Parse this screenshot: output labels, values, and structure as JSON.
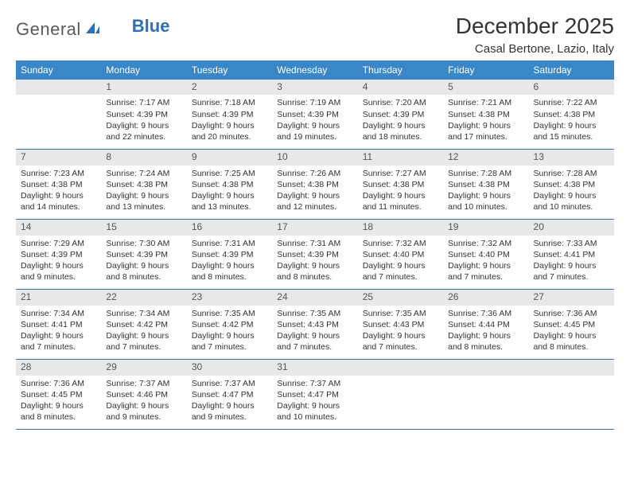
{
  "logo": {
    "part1": "General",
    "part2": "Blue"
  },
  "title": "December 2025",
  "location": "Casal Bertone, Lazio, Italy",
  "colors": {
    "header_bg": "#3a87c8",
    "header_text": "#ffffff",
    "daynum_bg": "#e8e8e8",
    "daynum_text": "#555555",
    "text": "#333333",
    "row_border": "#3a6fa5",
    "logo_gray": "#5a5a5a",
    "logo_blue": "#2f6fb3"
  },
  "day_headers": [
    "Sunday",
    "Monday",
    "Tuesday",
    "Wednesday",
    "Thursday",
    "Friday",
    "Saturday"
  ],
  "weeks": [
    [
      {
        "num": "",
        "empty": true
      },
      {
        "num": "1",
        "sunrise": "Sunrise: 7:17 AM",
        "sunset": "Sunset: 4:39 PM",
        "daylight1": "Daylight: 9 hours",
        "daylight2": "and 22 minutes."
      },
      {
        "num": "2",
        "sunrise": "Sunrise: 7:18 AM",
        "sunset": "Sunset: 4:39 PM",
        "daylight1": "Daylight: 9 hours",
        "daylight2": "and 20 minutes."
      },
      {
        "num": "3",
        "sunrise": "Sunrise: 7:19 AM",
        "sunset": "Sunset: 4:39 PM",
        "daylight1": "Daylight: 9 hours",
        "daylight2": "and 19 minutes."
      },
      {
        "num": "4",
        "sunrise": "Sunrise: 7:20 AM",
        "sunset": "Sunset: 4:39 PM",
        "daylight1": "Daylight: 9 hours",
        "daylight2": "and 18 minutes."
      },
      {
        "num": "5",
        "sunrise": "Sunrise: 7:21 AM",
        "sunset": "Sunset: 4:38 PM",
        "daylight1": "Daylight: 9 hours",
        "daylight2": "and 17 minutes."
      },
      {
        "num": "6",
        "sunrise": "Sunrise: 7:22 AM",
        "sunset": "Sunset: 4:38 PM",
        "daylight1": "Daylight: 9 hours",
        "daylight2": "and 15 minutes."
      }
    ],
    [
      {
        "num": "7",
        "sunrise": "Sunrise: 7:23 AM",
        "sunset": "Sunset: 4:38 PM",
        "daylight1": "Daylight: 9 hours",
        "daylight2": "and 14 minutes."
      },
      {
        "num": "8",
        "sunrise": "Sunrise: 7:24 AM",
        "sunset": "Sunset: 4:38 PM",
        "daylight1": "Daylight: 9 hours",
        "daylight2": "and 13 minutes."
      },
      {
        "num": "9",
        "sunrise": "Sunrise: 7:25 AM",
        "sunset": "Sunset: 4:38 PM",
        "daylight1": "Daylight: 9 hours",
        "daylight2": "and 13 minutes."
      },
      {
        "num": "10",
        "sunrise": "Sunrise: 7:26 AM",
        "sunset": "Sunset: 4:38 PM",
        "daylight1": "Daylight: 9 hours",
        "daylight2": "and 12 minutes."
      },
      {
        "num": "11",
        "sunrise": "Sunrise: 7:27 AM",
        "sunset": "Sunset: 4:38 PM",
        "daylight1": "Daylight: 9 hours",
        "daylight2": "and 11 minutes."
      },
      {
        "num": "12",
        "sunrise": "Sunrise: 7:28 AM",
        "sunset": "Sunset: 4:38 PM",
        "daylight1": "Daylight: 9 hours",
        "daylight2": "and 10 minutes."
      },
      {
        "num": "13",
        "sunrise": "Sunrise: 7:28 AM",
        "sunset": "Sunset: 4:38 PM",
        "daylight1": "Daylight: 9 hours",
        "daylight2": "and 10 minutes."
      }
    ],
    [
      {
        "num": "14",
        "sunrise": "Sunrise: 7:29 AM",
        "sunset": "Sunset: 4:39 PM",
        "daylight1": "Daylight: 9 hours",
        "daylight2": "and 9 minutes."
      },
      {
        "num": "15",
        "sunrise": "Sunrise: 7:30 AM",
        "sunset": "Sunset: 4:39 PM",
        "daylight1": "Daylight: 9 hours",
        "daylight2": "and 8 minutes."
      },
      {
        "num": "16",
        "sunrise": "Sunrise: 7:31 AM",
        "sunset": "Sunset: 4:39 PM",
        "daylight1": "Daylight: 9 hours",
        "daylight2": "and 8 minutes."
      },
      {
        "num": "17",
        "sunrise": "Sunrise: 7:31 AM",
        "sunset": "Sunset: 4:39 PM",
        "daylight1": "Daylight: 9 hours",
        "daylight2": "and 8 minutes."
      },
      {
        "num": "18",
        "sunrise": "Sunrise: 7:32 AM",
        "sunset": "Sunset: 4:40 PM",
        "daylight1": "Daylight: 9 hours",
        "daylight2": "and 7 minutes."
      },
      {
        "num": "19",
        "sunrise": "Sunrise: 7:32 AM",
        "sunset": "Sunset: 4:40 PM",
        "daylight1": "Daylight: 9 hours",
        "daylight2": "and 7 minutes."
      },
      {
        "num": "20",
        "sunrise": "Sunrise: 7:33 AM",
        "sunset": "Sunset: 4:41 PM",
        "daylight1": "Daylight: 9 hours",
        "daylight2": "and 7 minutes."
      }
    ],
    [
      {
        "num": "21",
        "sunrise": "Sunrise: 7:34 AM",
        "sunset": "Sunset: 4:41 PM",
        "daylight1": "Daylight: 9 hours",
        "daylight2": "and 7 minutes."
      },
      {
        "num": "22",
        "sunrise": "Sunrise: 7:34 AM",
        "sunset": "Sunset: 4:42 PM",
        "daylight1": "Daylight: 9 hours",
        "daylight2": "and 7 minutes."
      },
      {
        "num": "23",
        "sunrise": "Sunrise: 7:35 AM",
        "sunset": "Sunset: 4:42 PM",
        "daylight1": "Daylight: 9 hours",
        "daylight2": "and 7 minutes."
      },
      {
        "num": "24",
        "sunrise": "Sunrise: 7:35 AM",
        "sunset": "Sunset: 4:43 PM",
        "daylight1": "Daylight: 9 hours",
        "daylight2": "and 7 minutes."
      },
      {
        "num": "25",
        "sunrise": "Sunrise: 7:35 AM",
        "sunset": "Sunset: 4:43 PM",
        "daylight1": "Daylight: 9 hours",
        "daylight2": "and 7 minutes."
      },
      {
        "num": "26",
        "sunrise": "Sunrise: 7:36 AM",
        "sunset": "Sunset: 4:44 PM",
        "daylight1": "Daylight: 9 hours",
        "daylight2": "and 8 minutes."
      },
      {
        "num": "27",
        "sunrise": "Sunrise: 7:36 AM",
        "sunset": "Sunset: 4:45 PM",
        "daylight1": "Daylight: 9 hours",
        "daylight2": "and 8 minutes."
      }
    ],
    [
      {
        "num": "28",
        "sunrise": "Sunrise: 7:36 AM",
        "sunset": "Sunset: 4:45 PM",
        "daylight1": "Daylight: 9 hours",
        "daylight2": "and 8 minutes."
      },
      {
        "num": "29",
        "sunrise": "Sunrise: 7:37 AM",
        "sunset": "Sunset: 4:46 PM",
        "daylight1": "Daylight: 9 hours",
        "daylight2": "and 9 minutes."
      },
      {
        "num": "30",
        "sunrise": "Sunrise: 7:37 AM",
        "sunset": "Sunset: 4:47 PM",
        "daylight1": "Daylight: 9 hours",
        "daylight2": "and 9 minutes."
      },
      {
        "num": "31",
        "sunrise": "Sunrise: 7:37 AM",
        "sunset": "Sunset: 4:47 PM",
        "daylight1": "Daylight: 9 hours",
        "daylight2": "and 10 minutes."
      },
      {
        "num": "",
        "empty": true
      },
      {
        "num": "",
        "empty": true
      },
      {
        "num": "",
        "empty": true
      }
    ]
  ]
}
